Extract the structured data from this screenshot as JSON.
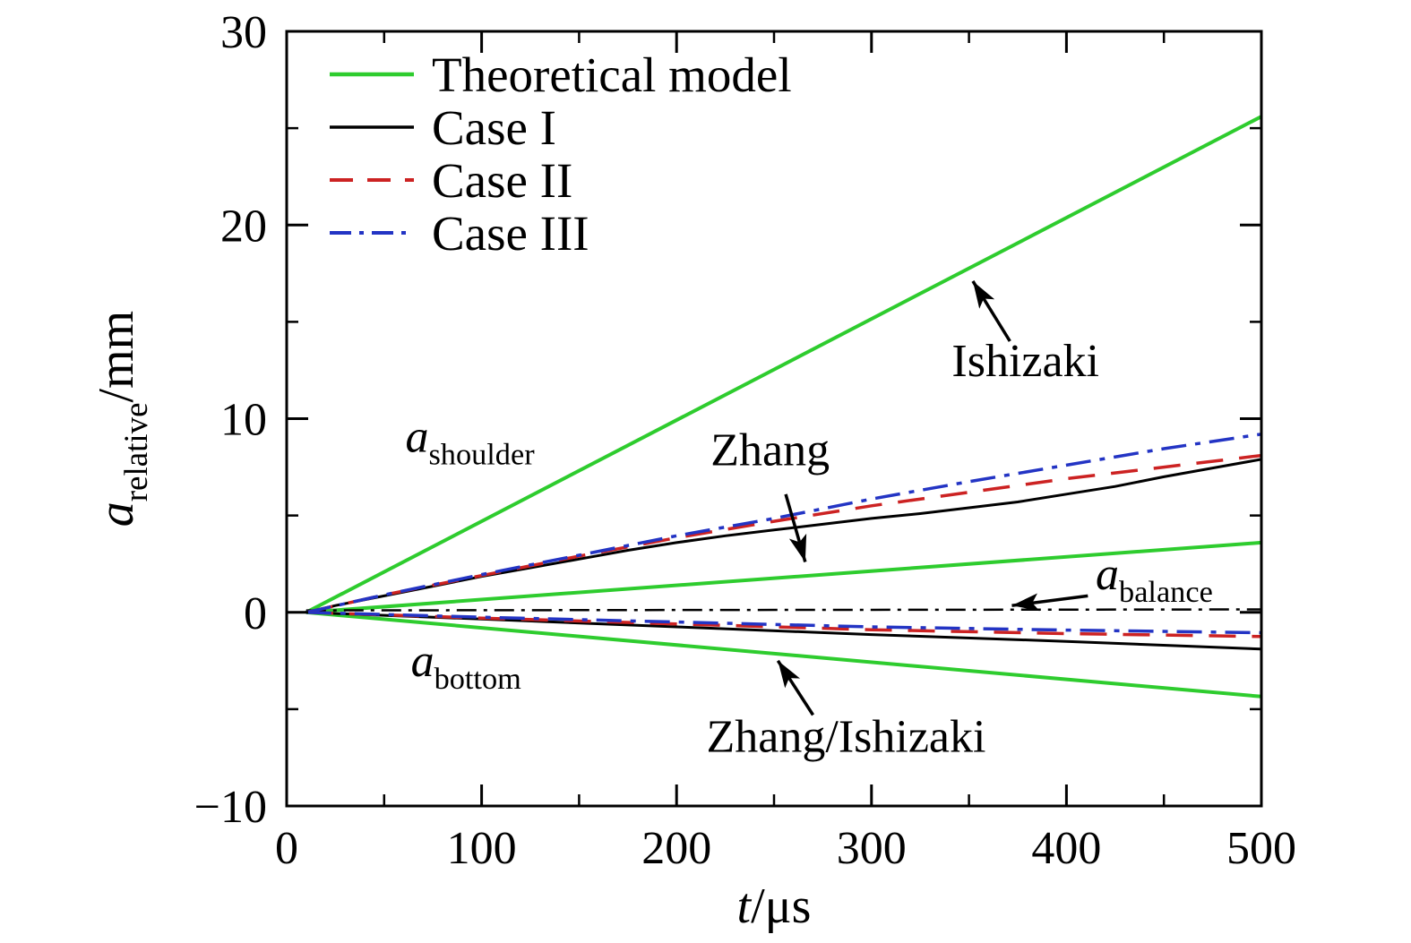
{
  "figure": {
    "background": "#ffffff"
  },
  "chart_data": {
    "type": "line",
    "title": "",
    "xlabel_parts": [
      {
        "t": "t",
        "style": "italic"
      },
      {
        "t": "/μs",
        "style": "normal"
      }
    ],
    "ylabel_parts": [
      {
        "t": "a",
        "style": "italic"
      },
      {
        "t": "relative",
        "style": "sub"
      },
      {
        "t": "/mm",
        "style": "normal"
      }
    ],
    "xlim": [
      0,
      500
    ],
    "ylim": [
      -10,
      30
    ],
    "xticks": [
      0,
      100,
      200,
      300,
      400,
      500
    ],
    "xticks_minor": [
      50,
      150,
      250,
      350,
      450
    ],
    "yticks": [
      -10,
      0,
      10,
      20,
      30
    ],
    "yticks_minor": [
      -5,
      5,
      15,
      25
    ],
    "grid": false,
    "colors": {
      "green": "#2ecc2e",
      "black": "#000000",
      "red": "#cc2222",
      "blue": "#2334c4"
    },
    "legend": {
      "position": "top-left",
      "items": [
        {
          "label": "Theoretical model",
          "color": "#2ecc2e",
          "style": "solid",
          "width": 4
        },
        {
          "label": "Case I",
          "color": "#000000",
          "style": "solid",
          "width": 3
        },
        {
          "label": "Case II",
          "color": "#cc2222",
          "style": "dashed",
          "width": 3.5
        },
        {
          "label": "Case III",
          "color": "#2334c4",
          "style": "dashdot",
          "width": 3.5
        }
      ]
    },
    "series": [
      {
        "name": "theory-shoulder-ishizaki",
        "color": "#2ecc2e",
        "style": "solid",
        "width": 4,
        "points": [
          [
            10,
            0
          ],
          [
            500,
            25.6
          ]
        ]
      },
      {
        "name": "theory-shoulder-zhang",
        "color": "#2ecc2e",
        "style": "solid",
        "width": 4,
        "points": [
          [
            10,
            0
          ],
          [
            500,
            3.6
          ]
        ]
      },
      {
        "name": "theory-bottom-zhang-ishizaki",
        "color": "#2ecc2e",
        "style": "solid",
        "width": 4,
        "points": [
          [
            10,
            0
          ],
          [
            500,
            -4.35
          ]
        ]
      },
      {
        "name": "balance-line",
        "color": "#000000",
        "style": "dashdot-fine",
        "width": 2.5,
        "points": [
          [
            10,
            0.1
          ],
          [
            500,
            0.15
          ]
        ]
      },
      {
        "name": "case1-shoulder",
        "color": "#000000",
        "style": "solid",
        "width": 3,
        "points": [
          [
            10,
            0
          ],
          [
            25,
            0.35
          ],
          [
            50,
            0.85
          ],
          [
            75,
            1.35
          ],
          [
            100,
            1.85
          ],
          [
            125,
            2.3
          ],
          [
            150,
            2.75
          ],
          [
            175,
            3.2
          ],
          [
            200,
            3.6
          ],
          [
            225,
            3.95
          ],
          [
            250,
            4.25
          ],
          [
            275,
            4.55
          ],
          [
            300,
            4.85
          ],
          [
            325,
            5.1
          ],
          [
            350,
            5.4
          ],
          [
            375,
            5.7
          ],
          [
            400,
            6.1
          ],
          [
            425,
            6.5
          ],
          [
            450,
            7.0
          ],
          [
            475,
            7.45
          ],
          [
            500,
            7.9
          ]
        ]
      },
      {
        "name": "case2-shoulder",
        "color": "#cc2222",
        "style": "dashed",
        "width": 3.5,
        "points": [
          [
            10,
            0
          ],
          [
            50,
            0.9
          ],
          [
            100,
            1.9
          ],
          [
            150,
            2.9
          ],
          [
            200,
            3.85
          ],
          [
            250,
            4.7
          ],
          [
            300,
            5.5
          ],
          [
            350,
            6.2
          ],
          [
            400,
            6.9
          ],
          [
            450,
            7.5
          ],
          [
            500,
            8.1
          ]
        ]
      },
      {
        "name": "case3-shoulder",
        "color": "#2334c4",
        "style": "dashdot",
        "width": 3.5,
        "points": [
          [
            10,
            0
          ],
          [
            50,
            0.9
          ],
          [
            100,
            1.95
          ],
          [
            150,
            2.95
          ],
          [
            200,
            3.95
          ],
          [
            250,
            4.85
          ],
          [
            300,
            5.85
          ],
          [
            350,
            6.75
          ],
          [
            400,
            7.6
          ],
          [
            450,
            8.45
          ],
          [
            500,
            9.2
          ]
        ]
      },
      {
        "name": "case1-bottom",
        "color": "#000000",
        "style": "solid",
        "width": 3,
        "points": [
          [
            10,
            0
          ],
          [
            100,
            -0.35
          ],
          [
            200,
            -0.75
          ],
          [
            300,
            -1.15
          ],
          [
            400,
            -1.5
          ],
          [
            500,
            -1.9
          ]
        ]
      },
      {
        "name": "case2-bottom",
        "color": "#cc2222",
        "style": "dashed",
        "width": 3.5,
        "points": [
          [
            10,
            0
          ],
          [
            100,
            -0.3
          ],
          [
            200,
            -0.6
          ],
          [
            300,
            -0.9
          ],
          [
            400,
            -1.1
          ],
          [
            500,
            -1.25
          ]
        ]
      },
      {
        "name": "case3-bottom",
        "color": "#2334c4",
        "style": "dashdot",
        "width": 3.5,
        "points": [
          [
            10,
            0
          ],
          [
            100,
            -0.25
          ],
          [
            200,
            -0.5
          ],
          [
            300,
            -0.75
          ],
          [
            400,
            -0.92
          ],
          [
            500,
            -1.05
          ]
        ]
      }
    ],
    "annotations": [
      {
        "name": "ishizaki-label",
        "anchor": "middle",
        "x": 379,
        "y": 12.2,
        "parts": [
          {
            "t": "Ishizaki",
            "style": "normal"
          }
        ]
      },
      {
        "name": "zhang-label",
        "anchor": "middle",
        "x": 248,
        "y": 7.6,
        "parts": [
          {
            "t": "Zhang",
            "style": "normal"
          }
        ]
      },
      {
        "name": "zhang-ishizaki-label",
        "anchor": "middle",
        "x": 287,
        "y": -7.2,
        "parts": [
          {
            "t": "Zhang/Ishizaki",
            "style": "normal"
          }
        ]
      },
      {
        "name": "a-balance-label",
        "anchor": "start",
        "x": 415,
        "y": 1.2,
        "parts": [
          {
            "t": "a",
            "style": "italic"
          },
          {
            "t": "balance",
            "style": "sub"
          }
        ]
      },
      {
        "name": "a-shoulder-label",
        "anchor": "middle",
        "x": 94,
        "y": 8.3,
        "parts": [
          {
            "t": "a",
            "style": "italic"
          },
          {
            "t": "shoulder",
            "style": "sub"
          }
        ]
      },
      {
        "name": "a-bottom-label",
        "anchor": "middle",
        "x": 92,
        "y": -3.3,
        "parts": [
          {
            "t": "a",
            "style": "italic"
          },
          {
            "t": "bottom",
            "style": "sub"
          }
        ]
      }
    ],
    "arrows": [
      {
        "name": "ishizaki-arrow",
        "from": [
          371,
          14.0
        ],
        "to": [
          352,
          17.1
        ]
      },
      {
        "name": "zhang-arrow",
        "from": [
          256,
          6.1
        ],
        "to": [
          266,
          2.6
        ]
      },
      {
        "name": "zhang-ishizaki-arrow",
        "from": [
          270,
          -5.3
        ],
        "to": [
          252,
          -2.5
        ]
      },
      {
        "name": "balance-arrow",
        "from": [
          411,
          0.85
        ],
        "to": [
          372,
          0.35
        ]
      }
    ]
  }
}
